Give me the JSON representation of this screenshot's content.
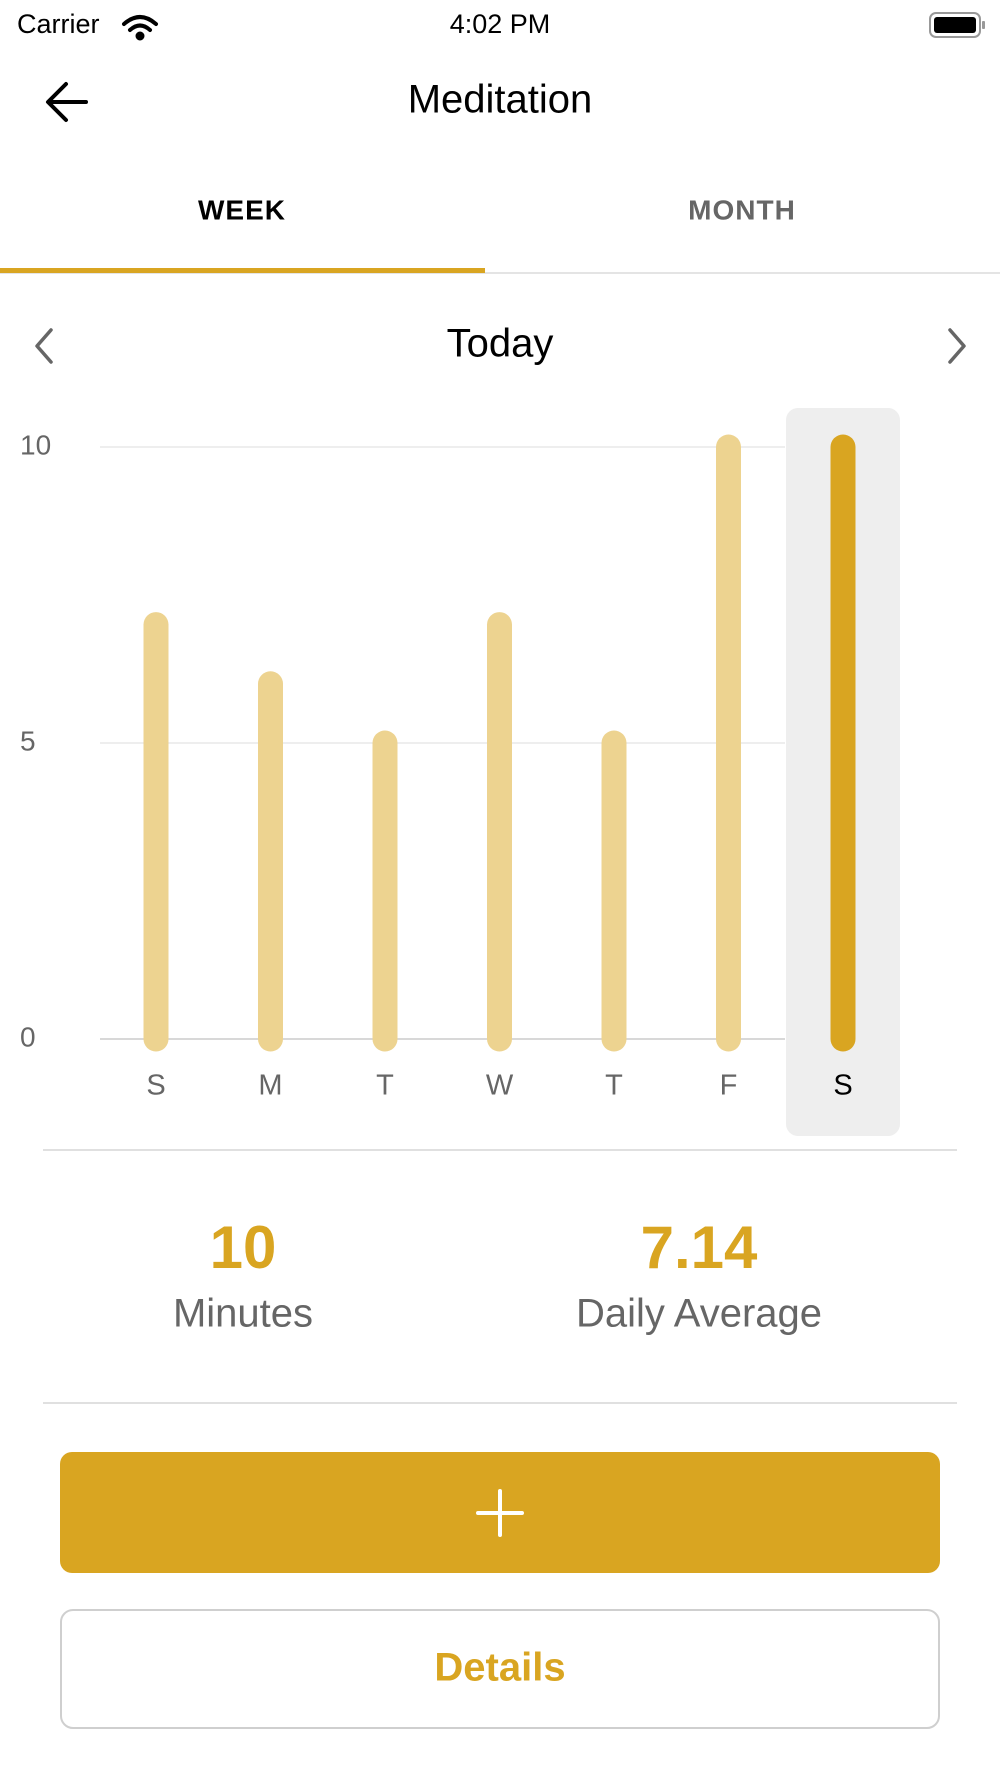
{
  "status": {
    "carrier": "Carrier",
    "time": "4:02 PM"
  },
  "header": {
    "title": "Meditation"
  },
  "tabs": [
    "WEEK",
    "MONTH"
  ],
  "nav": {
    "label": "Today"
  },
  "chart_data": {
    "type": "bar",
    "categories": [
      "S",
      "M",
      "T",
      "W",
      "T",
      "F",
      "S"
    ],
    "values": [
      7,
      6,
      5,
      7,
      5,
      10,
      10
    ],
    "color": "#edd390",
    "selected_color": "#d9a521",
    "selected_index": 6,
    "ylim": [
      0,
      10
    ],
    "yticks": [
      0,
      5,
      10
    ],
    "grid": true
  },
  "stats": [
    {
      "value": 10,
      "label": "Minutes"
    },
    {
      "value": 7.14,
      "label": "Daily Average"
    }
  ],
  "buttons": {
    "details": "Details"
  }
}
